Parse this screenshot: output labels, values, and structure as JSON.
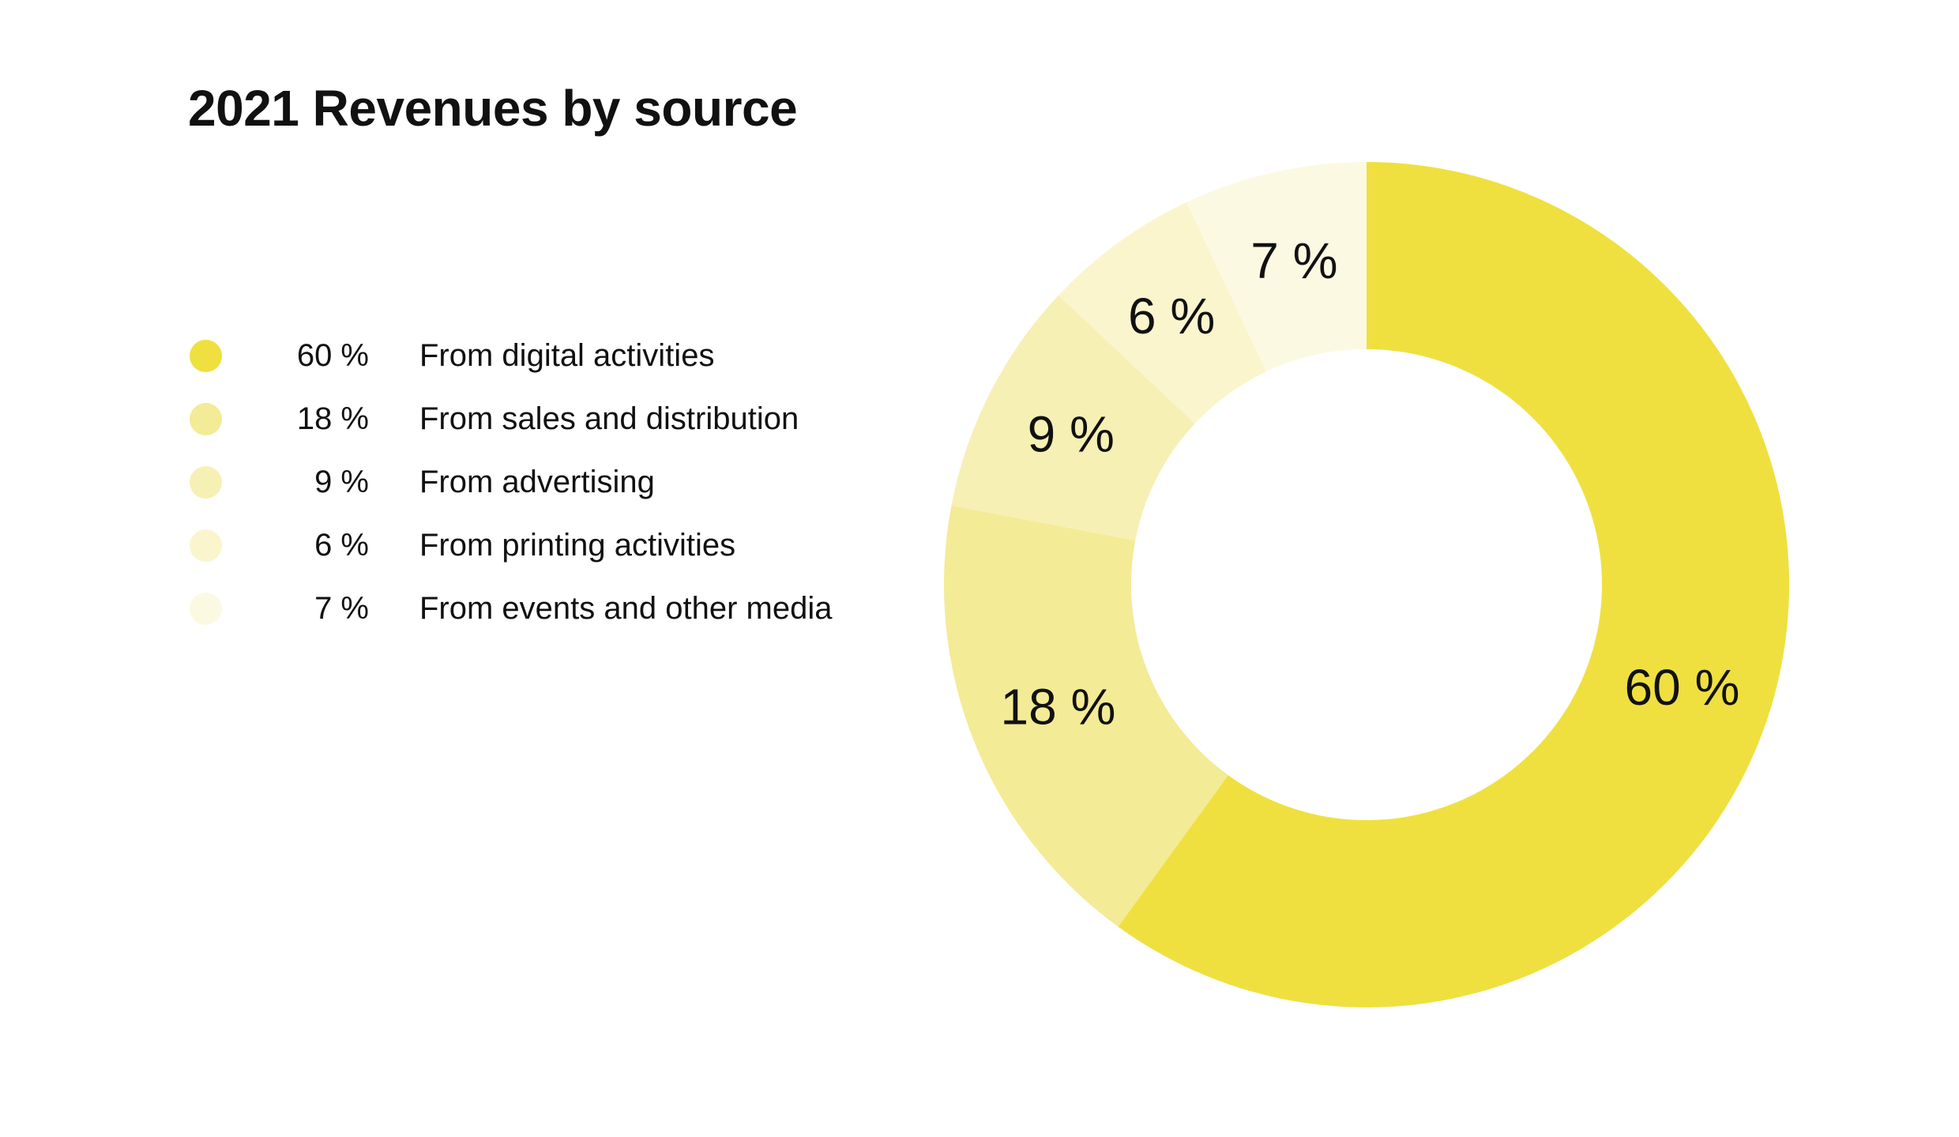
{
  "chart_data": {
    "type": "pie",
    "donut": true,
    "title": "2021 Revenues by source",
    "categories": [
      "From digital activities",
      "From sales and distribution",
      "From advertising",
      "From printing activities",
      "From events and other media"
    ],
    "values": [
      60,
      18,
      9,
      6,
      7
    ],
    "value_labels": [
      "60 %",
      "18 %",
      "9 %",
      "6 %",
      "7 %"
    ],
    "legend_labels": [
      "60 %",
      "18 %",
      "9 %",
      "6 %",
      "7 %"
    ],
    "colors": [
      "#efe040",
      "#f3eb96",
      "#f7f0b4",
      "#faf5cd",
      "#fcf9e3"
    ],
    "legend_placement": "left"
  }
}
